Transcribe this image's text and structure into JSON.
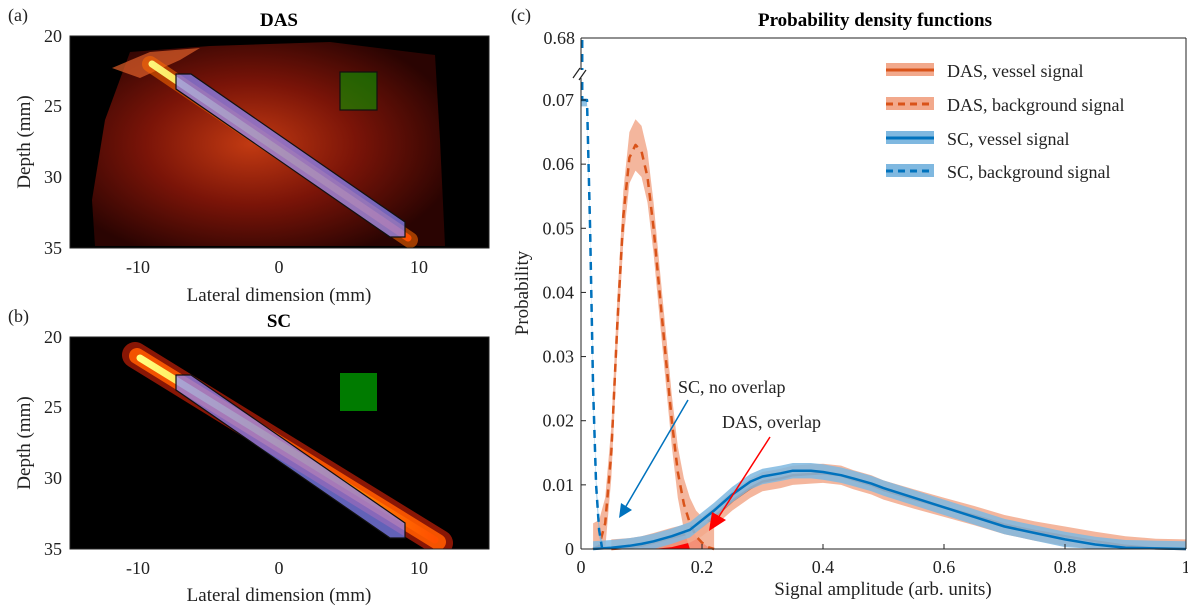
{
  "panels": {
    "a": {
      "label": "(a)",
      "title": "DAS",
      "xlabel": "Lateral dimension (mm)",
      "ylabel": "Depth (mm)",
      "xticks": [
        "-10",
        "0",
        "10"
      ],
      "yticks": [
        "20",
        "25",
        "30",
        "35"
      ]
    },
    "b": {
      "label": "(b)",
      "title": "SC",
      "xlabel": "Lateral dimension (mm)",
      "ylabel": "Depth (mm)",
      "xticks": [
        "-10",
        "0",
        "10"
      ],
      "yticks": [
        "20",
        "25",
        "30",
        "35"
      ]
    },
    "c": {
      "label": "(c)",
      "title": "Probability density functions",
      "xlabel": "Signal amplitude (arb. units)",
      "ylabel": "Probability",
      "xticks": [
        "0",
        "0.2",
        "0.4",
        "0.6",
        "0.8",
        "1"
      ],
      "yticks": [
        "0",
        "0.01",
        "0.02",
        "0.03",
        "0.04",
        "0.05",
        "0.06",
        "0.07"
      ],
      "ytick_break": "0.68"
    }
  },
  "legend": [
    {
      "label": "DAS, vessel signal",
      "color": "#D95319",
      "style": "solid"
    },
    {
      "label": "DAS, background signal",
      "color": "#D95319",
      "style": "dashed"
    },
    {
      "label": "SC, vessel signal",
      "color": "#0072BD",
      "style": "solid"
    },
    {
      "label": "SC, background signal",
      "color": "#0072BD",
      "style": "dashed"
    }
  ],
  "annotations": {
    "sc": "SC, no overlap",
    "das": "DAS, overlap"
  },
  "colors": {
    "das": "#D95319",
    "das_band": "#F2A98C",
    "sc": "#0072BD",
    "sc_band": "#7FB8E0",
    "overlap": "#FF0000",
    "roi_vessel": "#8888FF",
    "roi_background": "#00AA00"
  },
  "chart_data": [
    {
      "type": "heatmap",
      "title": "DAS",
      "xlabel": "Lateral dimension (mm)",
      "ylabel": "Depth (mm)",
      "xlim": [
        -15,
        15
      ],
      "ylim": [
        20,
        35
      ],
      "vessel_roi": {
        "from": [
          -7.2,
          23.0
        ],
        "to": [
          9.1,
          33.6
        ]
      },
      "background_roi": {
        "x": [
          4.7,
          7.1
        ],
        "y": [
          22.4,
          25.2
        ]
      }
    },
    {
      "type": "heatmap",
      "title": "SC",
      "xlabel": "Lateral dimension (mm)",
      "ylabel": "Depth (mm)",
      "xlim": [
        -15,
        15
      ],
      "ylim": [
        20,
        35
      ],
      "vessel_roi": {
        "from": [
          -7.2,
          23.0
        ],
        "to": [
          9.1,
          33.6
        ]
      },
      "background_roi": {
        "x": [
          4.7,
          7.1
        ],
        "y": [
          22.4,
          25.2
        ]
      }
    },
    {
      "type": "line",
      "title": "Probability density functions",
      "xlabel": "Signal amplitude (arb. units)",
      "ylabel": "Probability",
      "xlim": [
        0,
        1
      ],
      "ylim": [
        0,
        0.07
      ],
      "y_break_label": 0.68,
      "series": [
        {
          "name": "DAS, vessel signal",
          "x": [
            0.05,
            0.08,
            0.1,
            0.12,
            0.15,
            0.18,
            0.2,
            0.22,
            0.25,
            0.28,
            0.3,
            0.33,
            0.35,
            0.38,
            0.4,
            0.43,
            0.45,
            0.48,
            0.5,
            0.55,
            0.6,
            0.65,
            0.7,
            0.75,
            0.8,
            0.85,
            0.9,
            0.95,
            1.0
          ],
          "y": [
            0.0,
            0.0002,
            0.0005,
            0.001,
            0.0018,
            0.0025,
            0.0035,
            0.005,
            0.0075,
            0.0095,
            0.0105,
            0.011,
            0.0115,
            0.0117,
            0.0118,
            0.0115,
            0.0108,
            0.01,
            0.0092,
            0.0078,
            0.0065,
            0.0052,
            0.0038,
            0.0028,
            0.002,
            0.0012,
            0.0005,
            0.0001,
            0.0
          ]
        },
        {
          "name": "DAS, background signal",
          "x": [
            0.02,
            0.03,
            0.04,
            0.05,
            0.06,
            0.07,
            0.08,
            0.09,
            0.1,
            0.11,
            0.12,
            0.13,
            0.14,
            0.15,
            0.16,
            0.17,
            0.18,
            0.19,
            0.2,
            0.21,
            0.22
          ],
          "y": [
            0.0,
            0.0005,
            0.004,
            0.015,
            0.035,
            0.052,
            0.061,
            0.063,
            0.062,
            0.058,
            0.05,
            0.04,
            0.03,
            0.02,
            0.012,
            0.007,
            0.004,
            0.002,
            0.001,
            0.0003,
            0.0
          ]
        },
        {
          "name": "SC, vessel signal",
          "x": [
            0.02,
            0.05,
            0.08,
            0.1,
            0.12,
            0.15,
            0.18,
            0.2,
            0.22,
            0.25,
            0.28,
            0.3,
            0.33,
            0.35,
            0.38,
            0.4,
            0.43,
            0.45,
            0.48,
            0.5,
            0.55,
            0.6,
            0.65,
            0.7,
            0.75,
            0.8,
            0.85,
            0.9,
            0.95,
            1.0
          ],
          "y": [
            0.0,
            0.0002,
            0.0005,
            0.0008,
            0.0012,
            0.002,
            0.003,
            0.0045,
            0.006,
            0.0085,
            0.0105,
            0.0113,
            0.0118,
            0.0122,
            0.0122,
            0.012,
            0.0115,
            0.011,
            0.0102,
            0.0095,
            0.008,
            0.0065,
            0.005,
            0.0035,
            0.0025,
            0.0015,
            0.0007,
            0.0002,
            0.0001,
            0.0
          ]
        },
        {
          "name": "SC, background signal",
          "x": [
            0.0,
            0.01,
            0.015,
            0.02,
            0.025,
            0.03,
            0.035
          ],
          "y": [
            0.07,
            0.07,
            0.05,
            0.025,
            0.01,
            0.003,
            0.0
          ]
        }
      ],
      "overlap_region": {
        "x": [
          0.1,
          0.21
        ]
      }
    }
  ]
}
